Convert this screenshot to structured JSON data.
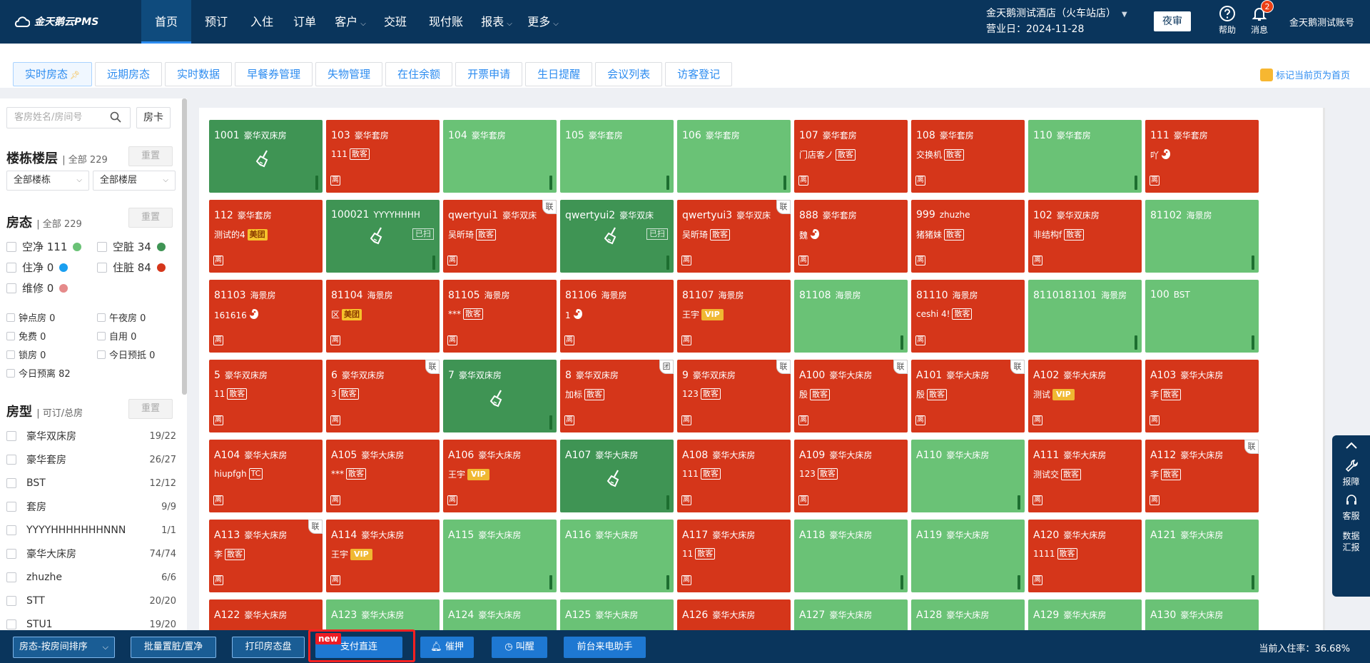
{
  "app": {
    "logo_text": "金天鹅云PMS",
    "hotel_name": "金天鹅测试酒店（火车站店）",
    "business_date": "营业日：2024-11-28",
    "night_audit_label": "夜审",
    "help_label": "帮助",
    "message_label": "消息",
    "message_count": "2",
    "account_name": "金天鹅测试账号"
  },
  "nav": [
    {
      "label": "首页",
      "active": true,
      "has_dropdown": false
    },
    {
      "label": "预订",
      "active": false,
      "has_dropdown": false
    },
    {
      "label": "入住",
      "active": false,
      "has_dropdown": false
    },
    {
      "label": "订单",
      "active": false,
      "has_dropdown": false
    },
    {
      "label": "客户",
      "active": false,
      "has_dropdown": true
    },
    {
      "label": "交班",
      "active": false,
      "has_dropdown": false
    },
    {
      "label": "现付账",
      "active": false,
      "has_dropdown": false
    },
    {
      "label": "报表",
      "active": false,
      "has_dropdown": true
    },
    {
      "label": "更多",
      "active": false,
      "has_dropdown": true
    }
  ],
  "tabs": [
    {
      "label": "实时房态",
      "active": true
    },
    {
      "label": "远期房态",
      "active": false
    },
    {
      "label": "实时数据",
      "active": false
    },
    {
      "label": "早餐券管理",
      "active": false
    },
    {
      "label": "失物管理",
      "active": false
    },
    {
      "label": "在住余额",
      "active": false
    },
    {
      "label": "开票申请",
      "active": false
    },
    {
      "label": "生日提醒",
      "active": false
    },
    {
      "label": "会议列表",
      "active": false
    },
    {
      "label": "访客登记",
      "active": false
    }
  ],
  "mark_home_label": "标记当前页为首页",
  "sidebar": {
    "search_placeholder": "客房姓名/房间号",
    "room_card_label": "房卡",
    "reset_label": "重置",
    "building": {
      "title": "楼栋楼层",
      "total": "全部 229",
      "building_select": "全部楼栋",
      "floor_select": "全部楼层"
    },
    "status": {
      "title": "房态",
      "total": "全部 229",
      "items": [
        {
          "label": "空净 111",
          "color": "#6ac276"
        },
        {
          "label": "空脏 34",
          "color": "#3f9454"
        },
        {
          "label": "住净 0",
          "color": "#1a9ff0"
        },
        {
          "label": "住脏 84",
          "color": "#d5361a"
        },
        {
          "label": "维修 0",
          "color": "#e58a8a"
        }
      ],
      "flags": [
        "钟点房 0",
        "午夜房 0",
        "免费 0",
        "自用 0",
        "锁房 0",
        "今日预抵 0",
        "今日预离 82"
      ]
    },
    "room_types": {
      "title": "房型",
      "subtitle": "可订/总房",
      "items": [
        {
          "name": "豪华双床房",
          "count": "19/22"
        },
        {
          "name": "豪华套房",
          "count": "26/27"
        },
        {
          "name": "BST",
          "count": "12/12"
        },
        {
          "name": "套房",
          "count": "9/9"
        },
        {
          "name": "YYYYHHHHHHHNNN",
          "count": "1/1"
        },
        {
          "name": "豪华大床房",
          "count": "74/74"
        },
        {
          "name": "zhuzhe",
          "count": "6/6"
        },
        {
          "name": "STT",
          "count": "20/20"
        },
        {
          "name": "STU1",
          "count": "19/20"
        }
      ]
    }
  },
  "room_badges": {
    "leave": "离",
    "lian": "联",
    "tuan": "团",
    "vip": "VIP",
    "meituan": "美团",
    "walkin": "散客",
    "tc": "TC",
    "cleaned": "已扫"
  },
  "rooms": [
    {
      "no": "1001",
      "type": "豪华双床房",
      "state": "g",
      "broom": true
    },
    {
      "no": "103",
      "type": "豪华套房",
      "state": "r",
      "guest": "111",
      "tag": "散客"
    },
    {
      "no": "104",
      "type": "豪华套房",
      "state": "l"
    },
    {
      "no": "105",
      "type": "豪华套房",
      "state": "l"
    },
    {
      "no": "106",
      "type": "豪华套房",
      "state": "l"
    },
    {
      "no": "107",
      "type": "豪华套房",
      "state": "r",
      "guest": "门店客ノ",
      "tag": "散客"
    },
    {
      "no": "108",
      "type": "豪华套房",
      "state": "r",
      "guest": "交换机",
      "tag": "散客"
    },
    {
      "no": "110",
      "type": "豪华套房",
      "state": "l"
    },
    {
      "no": "111",
      "type": "豪华套房",
      "state": "r",
      "guest": "吖",
      "tag": "ms"
    },
    {
      "no": "112",
      "type": "豪华套房",
      "state": "r",
      "guest": "测试的4",
      "tag": "美团"
    },
    {
      "no": "100021",
      "type": "YYYYHHHH",
      "state": "g",
      "broom": true,
      "cleaned": true
    },
    {
      "no": "qwertyui1",
      "type": "豪华双床",
      "state": "r",
      "guest": "吴昕琦",
      "tag": "散客",
      "corner": "联"
    },
    {
      "no": "qwertyui2",
      "type": "豪华双床",
      "state": "g",
      "broom": true,
      "cleaned": true
    },
    {
      "no": "qwertyui3",
      "type": "豪华双床",
      "state": "r",
      "guest": "吴昕琦",
      "tag": "散客",
      "corner": "联"
    },
    {
      "no": "888",
      "type": "豪华套房",
      "state": "r",
      "guest": "魏",
      "tag": "ms"
    },
    {
      "no": "999",
      "type": "zhuzhe",
      "state": "r",
      "guest": "猪猪妹",
      "tag": "散客"
    },
    {
      "no": "102",
      "type": "豪华双床房",
      "state": "r",
      "guest": "非结构f",
      "tag": "散客"
    },
    {
      "no": "81102",
      "type": "海景房",
      "state": "l"
    },
    {
      "no": "81103",
      "type": "海景房",
      "state": "r",
      "guest": "161616",
      "tag": "ms"
    },
    {
      "no": "81104",
      "type": "海景房",
      "state": "r",
      "guest": "区",
      "tag": "美团"
    },
    {
      "no": "81105",
      "type": "海景房",
      "state": "r",
      "guest": "***",
      "tag": "散客"
    },
    {
      "no": "81106",
      "type": "海景房",
      "state": "r",
      "guest": "1",
      "tag": "ms"
    },
    {
      "no": "81107",
      "type": "海景房",
      "state": "r",
      "guest": "王宇",
      "tag": "VIP"
    },
    {
      "no": "81108",
      "type": "海景房",
      "state": "l"
    },
    {
      "no": "81110",
      "type": "海景房",
      "state": "r",
      "guest": "ceshi 4!",
      "tag": "散客"
    },
    {
      "no": "8110181101",
      "type": "海景房",
      "state": "l"
    },
    {
      "no": "100",
      "type": "BST",
      "state": "l"
    },
    {
      "no": "5",
      "type": "豪华双床房",
      "state": "r",
      "guest": "11",
      "tag": "散客"
    },
    {
      "no": "6",
      "type": "豪华双床房",
      "state": "r",
      "guest": "3",
      "tag": "散客",
      "corner": "联"
    },
    {
      "no": "7",
      "type": "豪华双床房",
      "state": "g",
      "broom": true
    },
    {
      "no": "8",
      "type": "豪华双床房",
      "state": "r",
      "guest": "加标",
      "tag": "散客",
      "corner": "团"
    },
    {
      "no": "9",
      "type": "豪华双床房",
      "state": "r",
      "guest": "123",
      "tag": "散客",
      "corner": "联"
    },
    {
      "no": "A100",
      "type": "豪华大床房",
      "state": "r",
      "guest": "殷",
      "tag": "散客",
      "corner": "联"
    },
    {
      "no": "A101",
      "type": "豪华大床房",
      "state": "r",
      "guest": "殷",
      "tag": "散客",
      "corner": "联"
    },
    {
      "no": "A102",
      "type": "豪华大床房",
      "state": "r",
      "guest": "测试",
      "tag": "VIP"
    },
    {
      "no": "A103",
      "type": "豪华大床房",
      "state": "r",
      "guest": "李",
      "tag": "散客"
    },
    {
      "no": "A104",
      "type": "豪华大床房",
      "state": "r",
      "guest": "hiupfgh",
      "tag": "TC"
    },
    {
      "no": "A105",
      "type": "豪华大床房",
      "state": "r",
      "guest": "***",
      "tag": "散客"
    },
    {
      "no": "A106",
      "type": "豪华大床房",
      "state": "r",
      "guest": "王宇",
      "tag": "VIP"
    },
    {
      "no": "A107",
      "type": "豪华大床房",
      "state": "g",
      "broom": true
    },
    {
      "no": "A108",
      "type": "豪华大床房",
      "state": "r",
      "guest": "111",
      "tag": "散客"
    },
    {
      "no": "A109",
      "type": "豪华大床房",
      "state": "r",
      "guest": "123",
      "tag": "散客"
    },
    {
      "no": "A110",
      "type": "豪华大床房",
      "state": "l"
    },
    {
      "no": "A111",
      "type": "豪华大床房",
      "state": "r",
      "guest": "测试交",
      "tag": "散客"
    },
    {
      "no": "A112",
      "type": "豪华大床房",
      "state": "r",
      "guest": "李",
      "tag": "散客",
      "corner": "联"
    },
    {
      "no": "A113",
      "type": "豪华大床房",
      "state": "r",
      "guest": "李",
      "tag": "散客",
      "corner": "联"
    },
    {
      "no": "A114",
      "type": "豪华大床房",
      "state": "r",
      "guest": "王宇",
      "tag": "VIP"
    },
    {
      "no": "A115",
      "type": "豪华大床房",
      "state": "l"
    },
    {
      "no": "A116",
      "type": "豪华大床房",
      "state": "l"
    },
    {
      "no": "A117",
      "type": "豪华大床房",
      "state": "r",
      "guest": "11",
      "tag": "散客"
    },
    {
      "no": "A118",
      "type": "豪华大床房",
      "state": "l"
    },
    {
      "no": "A119",
      "type": "豪华大床房",
      "state": "l"
    },
    {
      "no": "A120",
      "type": "豪华大床房",
      "state": "r",
      "guest": "1111",
      "tag": "散客"
    },
    {
      "no": "A121",
      "type": "豪华大床房",
      "state": "l"
    },
    {
      "no": "A122",
      "type": "豪华大床房",
      "state": "r"
    },
    {
      "no": "A123",
      "type": "豪华大床房",
      "state": "l"
    },
    {
      "no": "A124",
      "type": "豪华大床房",
      "state": "l"
    },
    {
      "no": "A125",
      "type": "豪华大床房",
      "state": "l"
    },
    {
      "no": "A126",
      "type": "豪华大床房",
      "state": "r"
    },
    {
      "no": "A127",
      "type": "豪华大床房",
      "state": "l"
    },
    {
      "no": "A128",
      "type": "豪华大床房",
      "state": "l"
    },
    {
      "no": "A129",
      "type": "豪华大床房",
      "state": "l"
    },
    {
      "no": "A130",
      "type": "豪华大床房",
      "state": "l"
    }
  ],
  "float_panel": {
    "report": "报障",
    "service": "客服",
    "data_line1": "数据",
    "data_line2": "汇报"
  },
  "bottom": {
    "sort_select": "房态-按房间排序",
    "batch_clean": "批量置脏/置净",
    "print": "打印房态盘",
    "new_badge": "new",
    "pay_direct": "支付直连",
    "urge_deposit": "催押",
    "wakeup": "叫醒",
    "front_phone": "前台来电助手",
    "occupancy": "当前入住率：36.68%"
  }
}
